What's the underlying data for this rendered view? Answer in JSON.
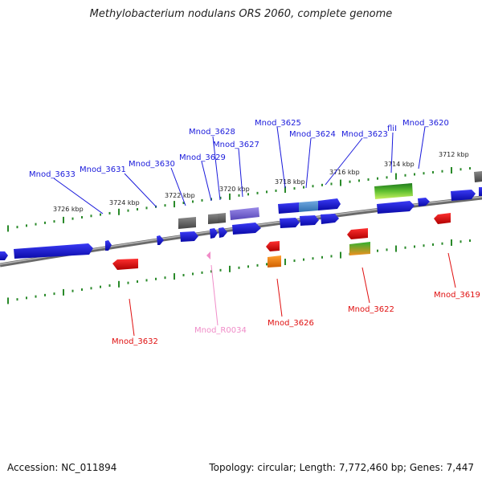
{
  "title": "Methylobacterium nodulans ORS 2060, complete genome",
  "footer": {
    "accession": "Accession: NC_011894",
    "topology": "Topology: circular; Length: 7,772,460 bp; Genes: 7,447"
  },
  "colors": {
    "forward": "#1a1adb",
    "reverse": "#e01010",
    "rna": "#f08cc8",
    "backbone": "#8a8a8a",
    "ticks": "#2a8a2a",
    "gray_gene": "#666666",
    "purple_gene": "#7060d0",
    "orange_gene": "#f08010",
    "green_gene": "#30a030"
  },
  "tick_labels": [
    {
      "label": "3726 kbp"
    },
    {
      "label": "3724 kbp"
    },
    {
      "label": "3722 kbp"
    },
    {
      "label": "3720 kbp"
    },
    {
      "label": "3718 kbp"
    },
    {
      "label": "3716 kbp"
    },
    {
      "label": "3714 kbp"
    },
    {
      "label": "3712 kbp"
    }
  ],
  "genes_top": [
    {
      "name": "Mnod_3633",
      "strand": "forward"
    },
    {
      "name": "Mnod_3631",
      "strand": "forward"
    },
    {
      "name": "Mnod_3630",
      "strand": "forward"
    },
    {
      "name": "Mnod_3629",
      "strand": "forward"
    },
    {
      "name": "Mnod_3628",
      "strand": "forward"
    },
    {
      "name": "Mnod_3627",
      "strand": "forward"
    },
    {
      "name": "Mnod_3625",
      "strand": "forward"
    },
    {
      "name": "Mnod_3624",
      "strand": "forward"
    },
    {
      "name": "Mnod_3623",
      "strand": "forward"
    },
    {
      "name": "fliI",
      "strand": "forward"
    },
    {
      "name": "Mnod_3620",
      "strand": "forward"
    }
  ],
  "genes_bottom": [
    {
      "name": "Mnod_3632",
      "strand": "reverse"
    },
    {
      "name": "Mnod_R0034",
      "strand": "rna"
    },
    {
      "name": "Mnod_3626",
      "strand": "reverse"
    },
    {
      "name": "Mnod_3622",
      "strand": "reverse"
    },
    {
      "name": "Mnod_3619",
      "strand": "reverse"
    }
  ]
}
